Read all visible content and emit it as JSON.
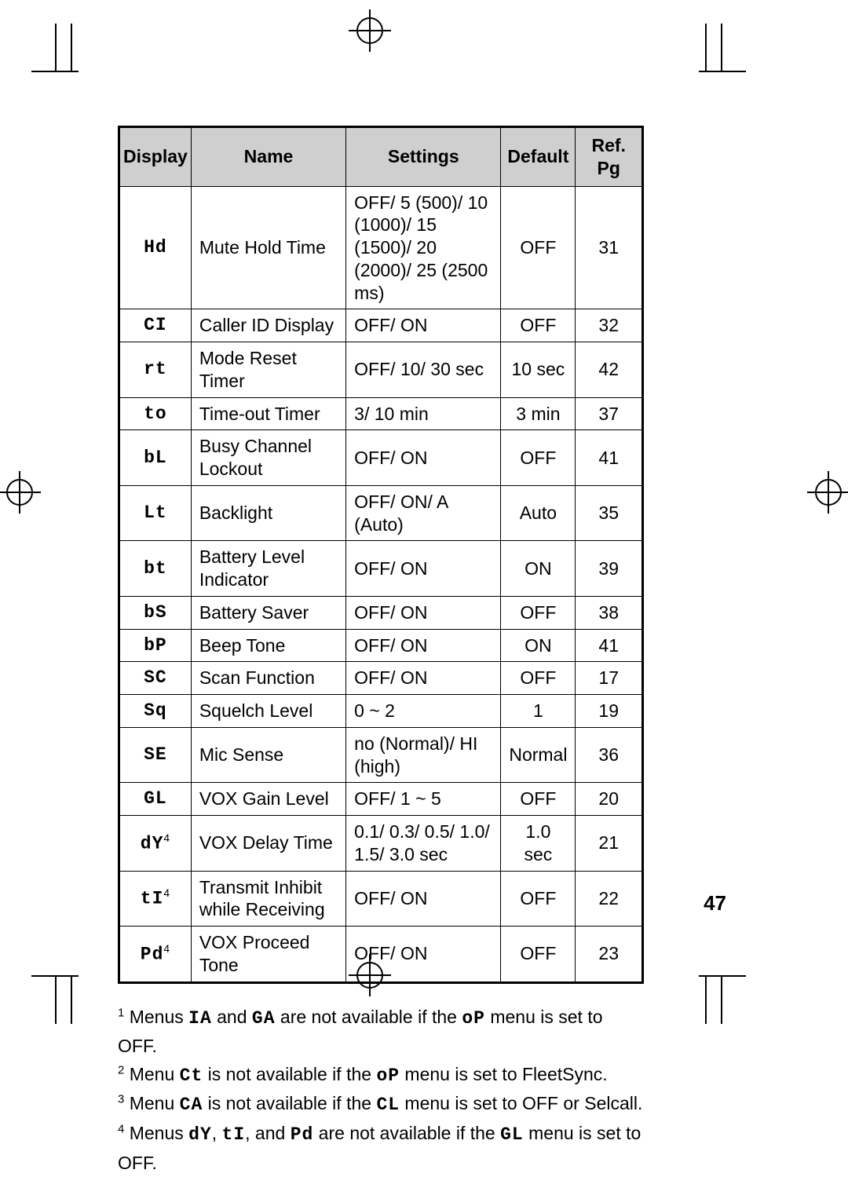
{
  "page_number": "47",
  "table": {
    "columns": [
      "Display",
      "Name",
      "Settings",
      "Default",
      "Ref. Pg"
    ],
    "col_widths_pct": [
      13,
      30,
      30,
      14,
      13
    ],
    "border_color": "#000000",
    "header_bg": "#cfcfcf",
    "font_size_pt": 17,
    "rows": [
      {
        "display": "Hd",
        "sup": "",
        "name": "Mute Hold Time",
        "settings": "OFF/ 5 (500)/ 10 (1000)/ 15 (1500)/ 20 (2000)/ 25 (2500 ms)",
        "default": "OFF",
        "ref": "31"
      },
      {
        "display": "CI",
        "sup": "",
        "name": "Caller ID Display",
        "settings": "OFF/ ON",
        "default": "OFF",
        "ref": "32"
      },
      {
        "display": "rt",
        "sup": "",
        "name": "Mode Reset Timer",
        "settings": "OFF/ 10/ 30 sec",
        "default": "10 sec",
        "ref": "42"
      },
      {
        "display": "to",
        "sup": "",
        "name": "Time-out Timer",
        "settings": "3/ 10 min",
        "default": "3 min",
        "ref": "37"
      },
      {
        "display": "bL",
        "sup": "",
        "name": "Busy Channel Lockout",
        "settings": "OFF/ ON",
        "default": "OFF",
        "ref": "41"
      },
      {
        "display": "Lt",
        "sup": "",
        "name": "Backlight",
        "settings": "OFF/ ON/ A (Auto)",
        "default": "Auto",
        "ref": "35"
      },
      {
        "display": "bt",
        "sup": "",
        "name": "Battery Level Indicator",
        "settings": "OFF/ ON",
        "default": "ON",
        "ref": "39"
      },
      {
        "display": "bS",
        "sup": "",
        "name": "Battery Saver",
        "settings": "OFF/ ON",
        "default": "OFF",
        "ref": "38"
      },
      {
        "display": "bP",
        "sup": "",
        "name": "Beep Tone",
        "settings": "OFF/ ON",
        "default": "ON",
        "ref": "41"
      },
      {
        "display": "SC",
        "sup": "",
        "name": "Scan Function",
        "settings": "OFF/ ON",
        "default": "OFF",
        "ref": "17"
      },
      {
        "display": "Sq",
        "sup": "",
        "name": "Squelch Level",
        "settings": "0 ~ 2",
        "default": "1",
        "ref": "19"
      },
      {
        "display": "SE",
        "sup": "",
        "name": "Mic Sense",
        "settings": "no (Normal)/ HI (high)",
        "default": "Normal",
        "ref": "36"
      },
      {
        "display": "GL",
        "sup": "",
        "name": "VOX Gain Level",
        "settings": "OFF/ 1 ~ 5",
        "default": "OFF",
        "ref": "20"
      },
      {
        "display": "dY",
        "sup": "4",
        "name": "VOX Delay Time",
        "settings": "0.1/ 0.3/ 0.5/ 1.0/ 1.5/ 3.0 sec",
        "default": "1.0 sec",
        "ref": "21"
      },
      {
        "display": "tI",
        "sup": "4",
        "name": "Transmit Inhibit while Receiving",
        "settings": "OFF/ ON",
        "default": "OFF",
        "ref": "22"
      },
      {
        "display": "Pd",
        "sup": "4",
        "name": "VOX Proceed Tone",
        "settings": "OFF/ ON",
        "default": "OFF",
        "ref": "23"
      }
    ]
  },
  "footnotes": {
    "n1": {
      "num": "1",
      "pre": "Menus ",
      "codes": [
        "IA",
        "GA"
      ],
      "mid": " are not available if the ",
      "code2": "oP",
      "post": " menu is set to OFF."
    },
    "n2": {
      "num": "2",
      "pre": "Menu ",
      "codes": [
        "Ct"
      ],
      "mid": " is not available if the ",
      "code2": "oP",
      "post": " menu is set to FleetSync."
    },
    "n3": {
      "num": "3",
      "pre": "Menu ",
      "codes": [
        "CA"
      ],
      "mid": " is not available if the ",
      "code2": "CL",
      "post": " menu is set to OFF or Selcall."
    },
    "n4": {
      "num": "4",
      "pre": "Menus ",
      "codes": [
        "dY",
        "tI",
        "Pd"
      ],
      "mid": " are not available if the ",
      "code2": "GL",
      "post": " menu is set to OFF."
    }
  }
}
